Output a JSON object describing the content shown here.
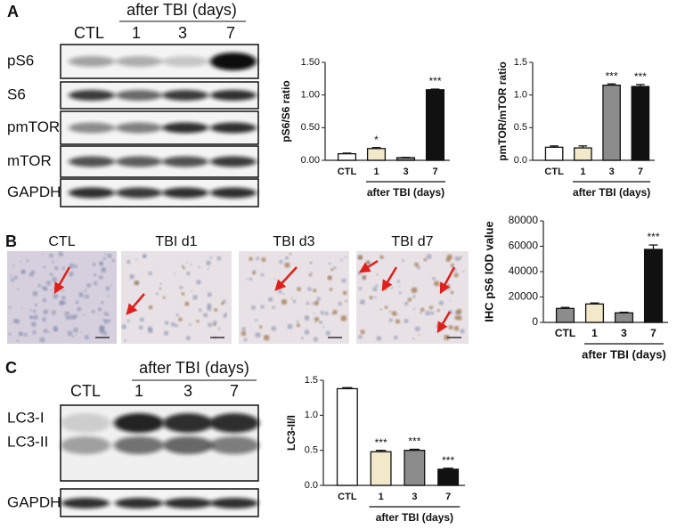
{
  "panels": [
    "A",
    "B",
    "C"
  ],
  "blot_a": {
    "header": "after TBI (days)",
    "lanes": [
      "CTL",
      "1",
      "3",
      "7"
    ],
    "rows": [
      "pS6",
      "S6",
      "pmTOR",
      "mTOR",
      "GAPDH"
    ]
  },
  "images_b": {
    "labels": [
      "CTL",
      "TBI d1",
      "TBI d3",
      "TBI d7"
    ]
  },
  "blot_c": {
    "header": "after TBI (days)",
    "lanes": [
      "CTL",
      "1",
      "3",
      "7"
    ],
    "rows": [
      "LC3-I",
      "LC3-II",
      "GAPDH"
    ]
  },
  "chart_data": [
    {
      "type": "bar",
      "y_label": "pS6/S6 ratio",
      "categories": [
        "CTL",
        "1",
        "3",
        "7"
      ],
      "values": [
        0.1,
        0.18,
        0.04,
        1.08
      ],
      "errors": [
        0.01,
        0.015,
        0.005,
        0.01
      ],
      "colors": [
        "#ffffff",
        "#f1e9c9",
        "#8c8c8c",
        "#111111"
      ],
      "annotations": [
        null,
        "*",
        null,
        "***"
      ],
      "group_label": "after TBI (days)",
      "ylim": [
        0,
        1.5
      ],
      "yticks": [
        {
          "value": 0,
          "label": "0.00"
        },
        {
          "value": 0.5,
          "label": "0.50"
        },
        {
          "value": 1,
          "label": "1.00"
        },
        {
          "value": 1.5,
          "label": "1.50"
        }
      ]
    },
    {
      "type": "bar",
      "y_label": "pmTOR/mTOR ratio",
      "categories": [
        "CTL",
        "1",
        "3",
        "7"
      ],
      "values": [
        0.2,
        0.19,
        1.15,
        1.13
      ],
      "errors": [
        0.02,
        0.03,
        0.02,
        0.03
      ],
      "colors": [
        "#ffffff",
        "#f1e9c9",
        "#8c8c8c",
        "#111111"
      ],
      "annotations": [
        null,
        null,
        "***",
        "***"
      ],
      "group_label": "after TBI (days)",
      "ylim": [
        0,
        1.5
      ],
      "yticks": [
        {
          "value": 0,
          "label": "0.0"
        },
        {
          "value": 0.5,
          "label": "0.5"
        },
        {
          "value": 1,
          "label": "1.0"
        },
        {
          "value": 1.5,
          "label": "1.5"
        }
      ]
    },
    {
      "type": "bar",
      "y_label": "IHC pS6 IOD value",
      "categories": [
        "CTL",
        "1",
        "3",
        "7"
      ],
      "values": [
        11000,
        14500,
        7500,
        57500
      ],
      "errors": [
        800,
        800,
        500,
        3500
      ],
      "colors": [
        "#8c8c8c",
        "#f1e9c9",
        "#8c8c8c",
        "#111111"
      ],
      "annotations": [
        null,
        null,
        null,
        "***"
      ],
      "group_label": "after TBI (days)",
      "ylim": [
        0,
        80000
      ],
      "yticks": [
        0,
        20000,
        40000,
        60000,
        80000
      ]
    },
    {
      "type": "bar",
      "y_label": "LC3-II/I",
      "categories": [
        "CTL",
        "1",
        "3",
        "7"
      ],
      "values": [
        1.38,
        0.48,
        0.5,
        0.23
      ],
      "errors": [
        0.015,
        0.02,
        0.015,
        0.015
      ],
      "colors": [
        "#ffffff",
        "#f1e9c9",
        "#8c8c8c",
        "#111111"
      ],
      "annotations": [
        null,
        "***",
        "***",
        "***"
      ],
      "group_label": "after TBI (days)",
      "ylim": [
        0,
        1.5
      ],
      "yticks": [
        {
          "value": 0,
          "label": "0.0"
        },
        {
          "value": 0.5,
          "label": "0.5"
        },
        {
          "value": 1,
          "label": "1.0"
        },
        {
          "value": 1.5,
          "label": "1.5"
        }
      ]
    }
  ]
}
